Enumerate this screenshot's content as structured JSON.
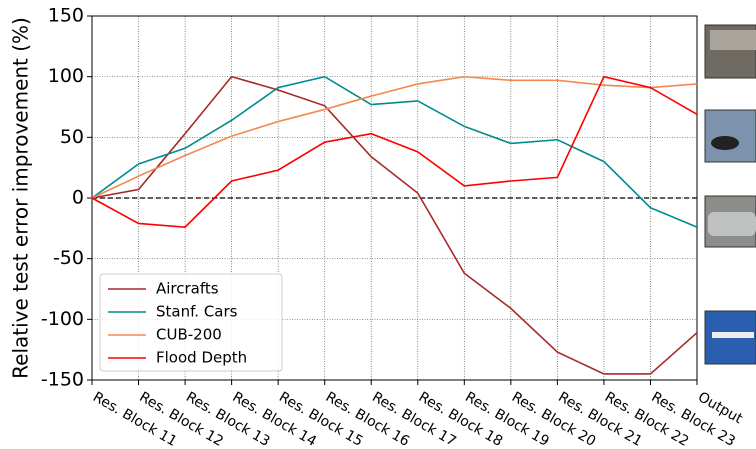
{
  "chart_data": {
    "type": "line",
    "y_label": "Relative test error improvement (%)",
    "categories": [
      "Res. Block 11",
      "Res. Block 12",
      "Res. Block 13",
      "Res. Block 14",
      "Res. Block 15",
      "Res. Block 16",
      "Res. Block 17",
      "Res. Block 18",
      "Res. Block 19",
      "Res. Block 20",
      "Res. Block 21",
      "Res. Block 22",
      "Res. Block 23",
      "Output"
    ],
    "series": [
      {
        "name": "Aircrafts",
        "color": "#a52a2a",
        "values": [
          0,
          7,
          53,
          100,
          89,
          76,
          34,
          4,
          -62,
          -91,
          -127,
          -145,
          -145,
          -111
        ]
      },
      {
        "name": "Stanf. Cars",
        "color": "#008b8b",
        "values": [
          0,
          28,
          41,
          64,
          91,
          100,
          77,
          80,
          59,
          45,
          48,
          30,
          -8,
          -24
        ]
      },
      {
        "name": "CUB-200",
        "color": "#f4884f",
        "values": [
          0,
          18,
          35,
          51,
          63,
          73,
          84,
          94,
          100,
          97,
          97,
          93,
          91,
          94
        ]
      },
      {
        "name": "Flood Depth",
        "color": "#ff0000",
        "values": [
          0,
          -21,
          -24,
          14,
          23,
          46,
          53,
          38,
          10,
          14,
          17,
          100,
          91,
          69
        ]
      }
    ],
    "ylim": [
      -150,
      150
    ],
    "yticks": [
      -150,
      -100,
      -50,
      0,
      50,
      100,
      150
    ],
    "hline": 0,
    "grid": true,
    "legend": "lower left"
  }
}
